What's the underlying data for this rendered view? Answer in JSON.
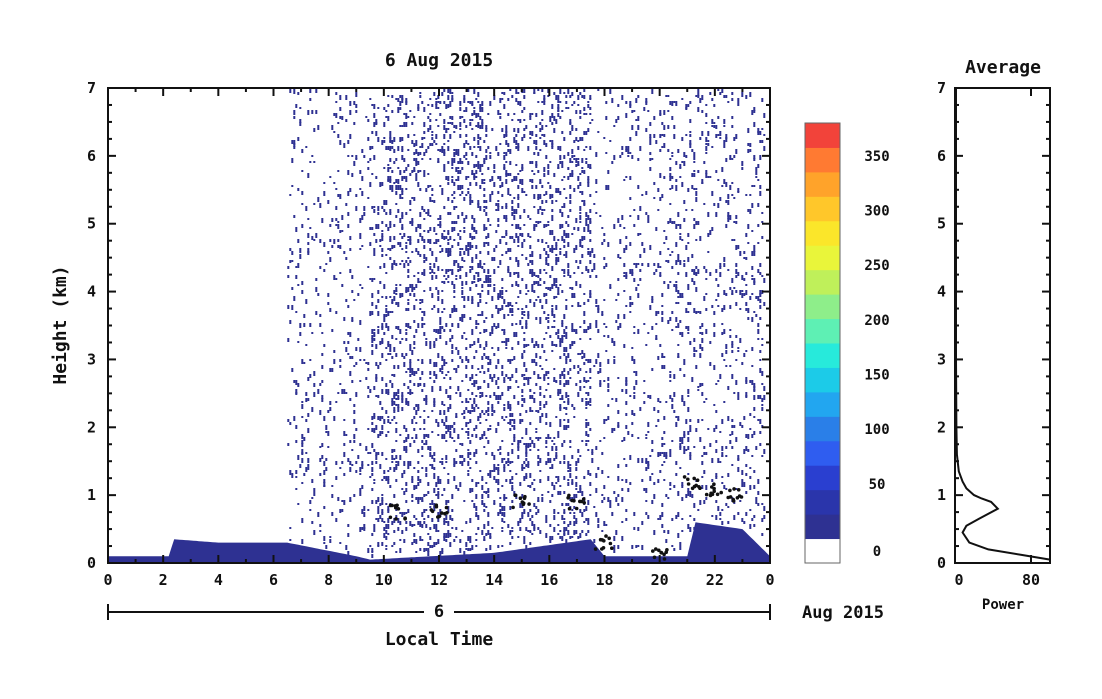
{
  "main_chart": {
    "title": "6  Aug  2015",
    "ylabel": "Height  (km)",
    "xlabel": "Local Time",
    "date_day": "6",
    "date_suffix": "Aug  2015",
    "x_ticks": [
      "0",
      "2",
      "4",
      "6",
      "8",
      "10",
      "12",
      "14",
      "16",
      "18",
      "20",
      "22",
      "0"
    ],
    "y_ticks": [
      "0",
      "1",
      "2",
      "3",
      "4",
      "5",
      "6",
      "7"
    ]
  },
  "colorbar": {
    "tick_labels": [
      "0",
      "50",
      "100",
      "150",
      "200",
      "250",
      "300",
      "350"
    ],
    "colors": [
      "#ffffff",
      "#2e3192",
      "#2a35ab",
      "#2a3fd0",
      "#2f5df0",
      "#2a7fe8",
      "#22a6f0",
      "#1ccbe8",
      "#27eadb",
      "#5ef0b4",
      "#8eee8a",
      "#bff05a",
      "#e9f53a",
      "#fbe62a",
      "#ffc72a",
      "#ffa32a",
      "#ff7a32",
      "#f2433a"
    ]
  },
  "side_chart": {
    "title": "Average",
    "xlabel": "Power",
    "x_ticks": [
      "0",
      "80"
    ],
    "y_ticks": [
      "0",
      "1",
      "2",
      "3",
      "4",
      "5",
      "6",
      "7"
    ]
  },
  "chart_data": [
    {
      "type": "heatmap",
      "title": "6  Aug  2015",
      "xlabel": "Local Time",
      "ylabel": "Height  (km)",
      "xlim": [
        0,
        24
      ],
      "ylim": [
        0,
        7
      ],
      "colorbar_range": [
        0,
        380
      ],
      "colorbar_ticks": [
        0,
        50,
        100,
        150,
        200,
        250,
        300,
        350
      ],
      "features": {
        "surface_layer_top_km": [
          [
            0,
            0.1
          ],
          [
            2.2,
            0.1
          ],
          [
            2.4,
            0.35
          ],
          [
            4,
            0.3
          ],
          [
            6.5,
            0.3
          ],
          [
            9,
            0.1
          ],
          [
            9.5,
            0.05
          ],
          [
            14,
            0.15
          ],
          [
            17.5,
            0.35
          ],
          [
            18,
            0.1
          ],
          [
            21,
            0.1
          ],
          [
            21.3,
            0.6
          ],
          [
            23,
            0.5
          ],
          [
            24,
            0.1
          ]
        ],
        "noise_band_hours": [
          6.5,
          23.8
        ],
        "dense_noise_hours": [
          9.5,
          17.5
        ],
        "elevated_layer_km": [
          [
            10.5,
            0.75
          ],
          [
            12,
            0.75
          ],
          [
            15,
            0.9
          ],
          [
            17,
            0.9
          ],
          [
            18,
            0.3
          ],
          [
            20,
            0.15
          ],
          [
            21.2,
            1.2
          ],
          [
            22,
            1.1
          ],
          [
            22.8,
            1.0
          ]
        ]
      }
    },
    {
      "type": "line",
      "title": "Average",
      "xlabel": "Power",
      "xlim": [
        0,
        100
      ],
      "ylim": [
        0,
        7
      ],
      "x": [
        100,
        70,
        35,
        15,
        8,
        12,
        25,
        45,
        38,
        28,
        20,
        12,
        8,
        4,
        2,
        1.5,
        1,
        1,
        1,
        1
      ],
      "y": [
        0.05,
        0.12,
        0.2,
        0.3,
        0.45,
        0.55,
        0.65,
        0.8,
        0.9,
        0.95,
        1.0,
        1.1,
        1.2,
        1.35,
        1.6,
        2.0,
        3.0,
        4.5,
        6.0,
        7.0
      ]
    }
  ]
}
